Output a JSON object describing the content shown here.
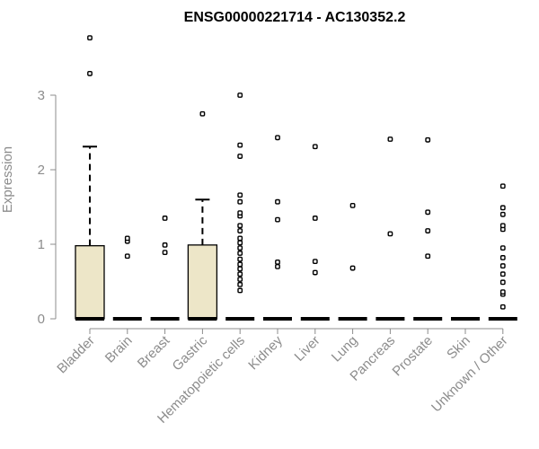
{
  "chart_data": {
    "type": "boxplot",
    "title": "ENSG00000221714 - AC130352.2",
    "xlabel": "",
    "ylabel": "Expression",
    "ylim": [
      0,
      3.9
    ],
    "yticks": [
      0,
      1,
      2,
      3
    ],
    "grid": false,
    "colors": {
      "box_fill": "#ede6c8",
      "box_stroke": "#000000",
      "axis": "#8c8c8c"
    },
    "categories": [
      "Bladder",
      "Brain",
      "Breast",
      "Gastric",
      "Hematopoietic cells",
      "Kidney",
      "Liver",
      "Lung",
      "Pancreas",
      "Prostate",
      "Skin",
      "Unknown / Other"
    ],
    "boxes": [
      {
        "category": "Bladder",
        "min": 0,
        "q1": 0,
        "median": 0,
        "q3": 0.98,
        "whisker_high": 2.31,
        "outliers": [
          3.29,
          3.77
        ]
      },
      {
        "category": "Brain",
        "min": 0,
        "q1": 0,
        "median": 0,
        "q3": 0,
        "whisker_high": 0,
        "outliers": [
          0.84,
          1.04,
          1.08
        ]
      },
      {
        "category": "Breast",
        "min": 0,
        "q1": 0,
        "median": 0,
        "q3": 0,
        "whisker_high": 0,
        "outliers": [
          0.89,
          0.99,
          1.35
        ]
      },
      {
        "category": "Gastric",
        "min": 0,
        "q1": 0,
        "median": 0,
        "q3": 0.99,
        "whisker_high": 1.6,
        "outliers": [
          2.75
        ]
      },
      {
        "category": "Hematopoietic cells",
        "min": 0,
        "q1": 0,
        "median": 0,
        "q3": 0,
        "whisker_high": 0,
        "outliers": [
          0.38,
          0.46,
          0.53,
          0.6,
          0.67,
          0.73,
          0.8,
          0.88,
          0.95,
          1.02,
          1.08,
          1.18,
          1.25,
          1.38,
          1.42,
          1.57,
          1.66,
          2.18,
          2.33,
          3.0
        ]
      },
      {
        "category": "Kidney",
        "min": 0,
        "q1": 0,
        "median": 0,
        "q3": 0,
        "whisker_high": 0,
        "outliers": [
          0.7,
          0.76,
          1.33,
          1.57,
          2.43
        ]
      },
      {
        "category": "Liver",
        "min": 0,
        "q1": 0,
        "median": 0,
        "q3": 0,
        "whisker_high": 0,
        "outliers": [
          0.62,
          0.77,
          1.35,
          2.31
        ]
      },
      {
        "category": "Lung",
        "min": 0,
        "q1": 0,
        "median": 0,
        "q3": 0,
        "whisker_high": 0,
        "outliers": [
          0.68,
          1.52
        ]
      },
      {
        "category": "Pancreas",
        "min": 0,
        "q1": 0,
        "median": 0,
        "q3": 0,
        "whisker_high": 0,
        "outliers": [
          1.14,
          2.41
        ]
      },
      {
        "category": "Prostate",
        "min": 0,
        "q1": 0,
        "median": 0,
        "q3": 0,
        "whisker_high": 0,
        "outliers": [
          0.84,
          1.18,
          1.43,
          2.4
        ]
      },
      {
        "category": "Skin",
        "min": 0,
        "q1": 0,
        "median": 0,
        "q3": 0,
        "whisker_high": 0,
        "outliers": []
      },
      {
        "category": "Unknown / Other",
        "min": 0,
        "q1": 0,
        "median": 0,
        "q3": 0,
        "whisker_high": 0,
        "outliers": [
          0.16,
          0.33,
          0.36,
          0.49,
          0.6,
          0.71,
          0.82,
          0.95,
          1.2,
          1.25,
          1.4,
          1.49,
          1.78
        ]
      }
    ]
  }
}
